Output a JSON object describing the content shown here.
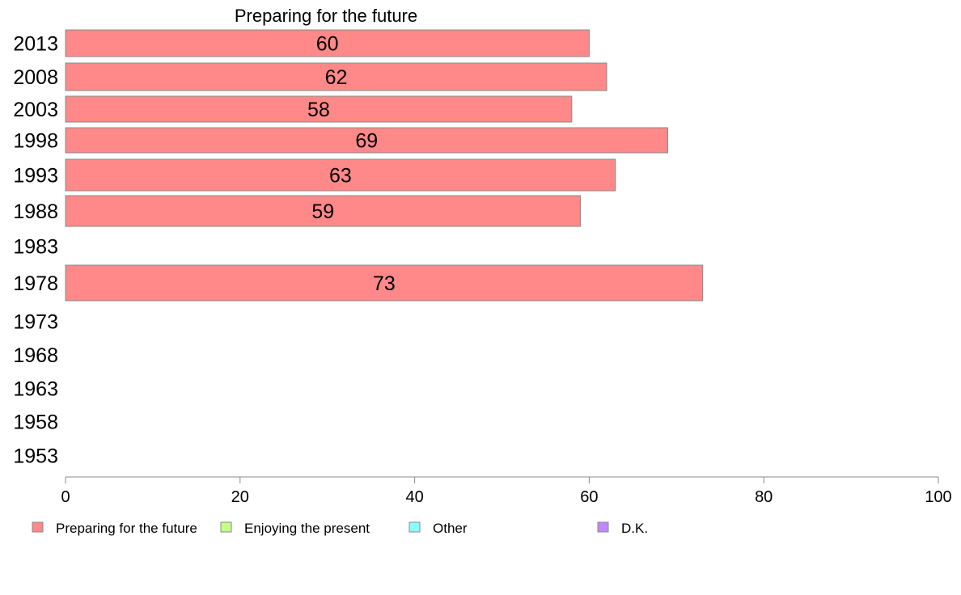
{
  "chart_data": {
    "type": "bar",
    "orientation": "horizontal",
    "title": "Preparing for the future",
    "xlim": [
      0,
      100
    ],
    "x_ticks": [
      "0",
      "20",
      "40",
      "60",
      "80",
      "100"
    ],
    "categories": [
      "2013",
      "2008",
      "2003",
      "1998",
      "1993",
      "1988",
      "1983",
      "1978",
      "1973",
      "1968",
      "1963",
      "1958",
      "1953"
    ],
    "series": [
      {
        "name": "Preparing for the future",
        "color": "#ff8888",
        "values": [
          60,
          62,
          58,
          69,
          63,
          59,
          null,
          73,
          null,
          null,
          null,
          null,
          null
        ]
      }
    ],
    "legend": {
      "placement": "bottom",
      "items": [
        {
          "label": "Preparing for the future",
          "color": "#ff8888"
        },
        {
          "label": "Enjoying the present",
          "color": "#c6ff88"
        },
        {
          "label": "Other",
          "color": "#88ffff"
        },
        {
          "label": "D.K.",
          "color": "#bf88ff"
        }
      ]
    },
    "grid": false
  }
}
